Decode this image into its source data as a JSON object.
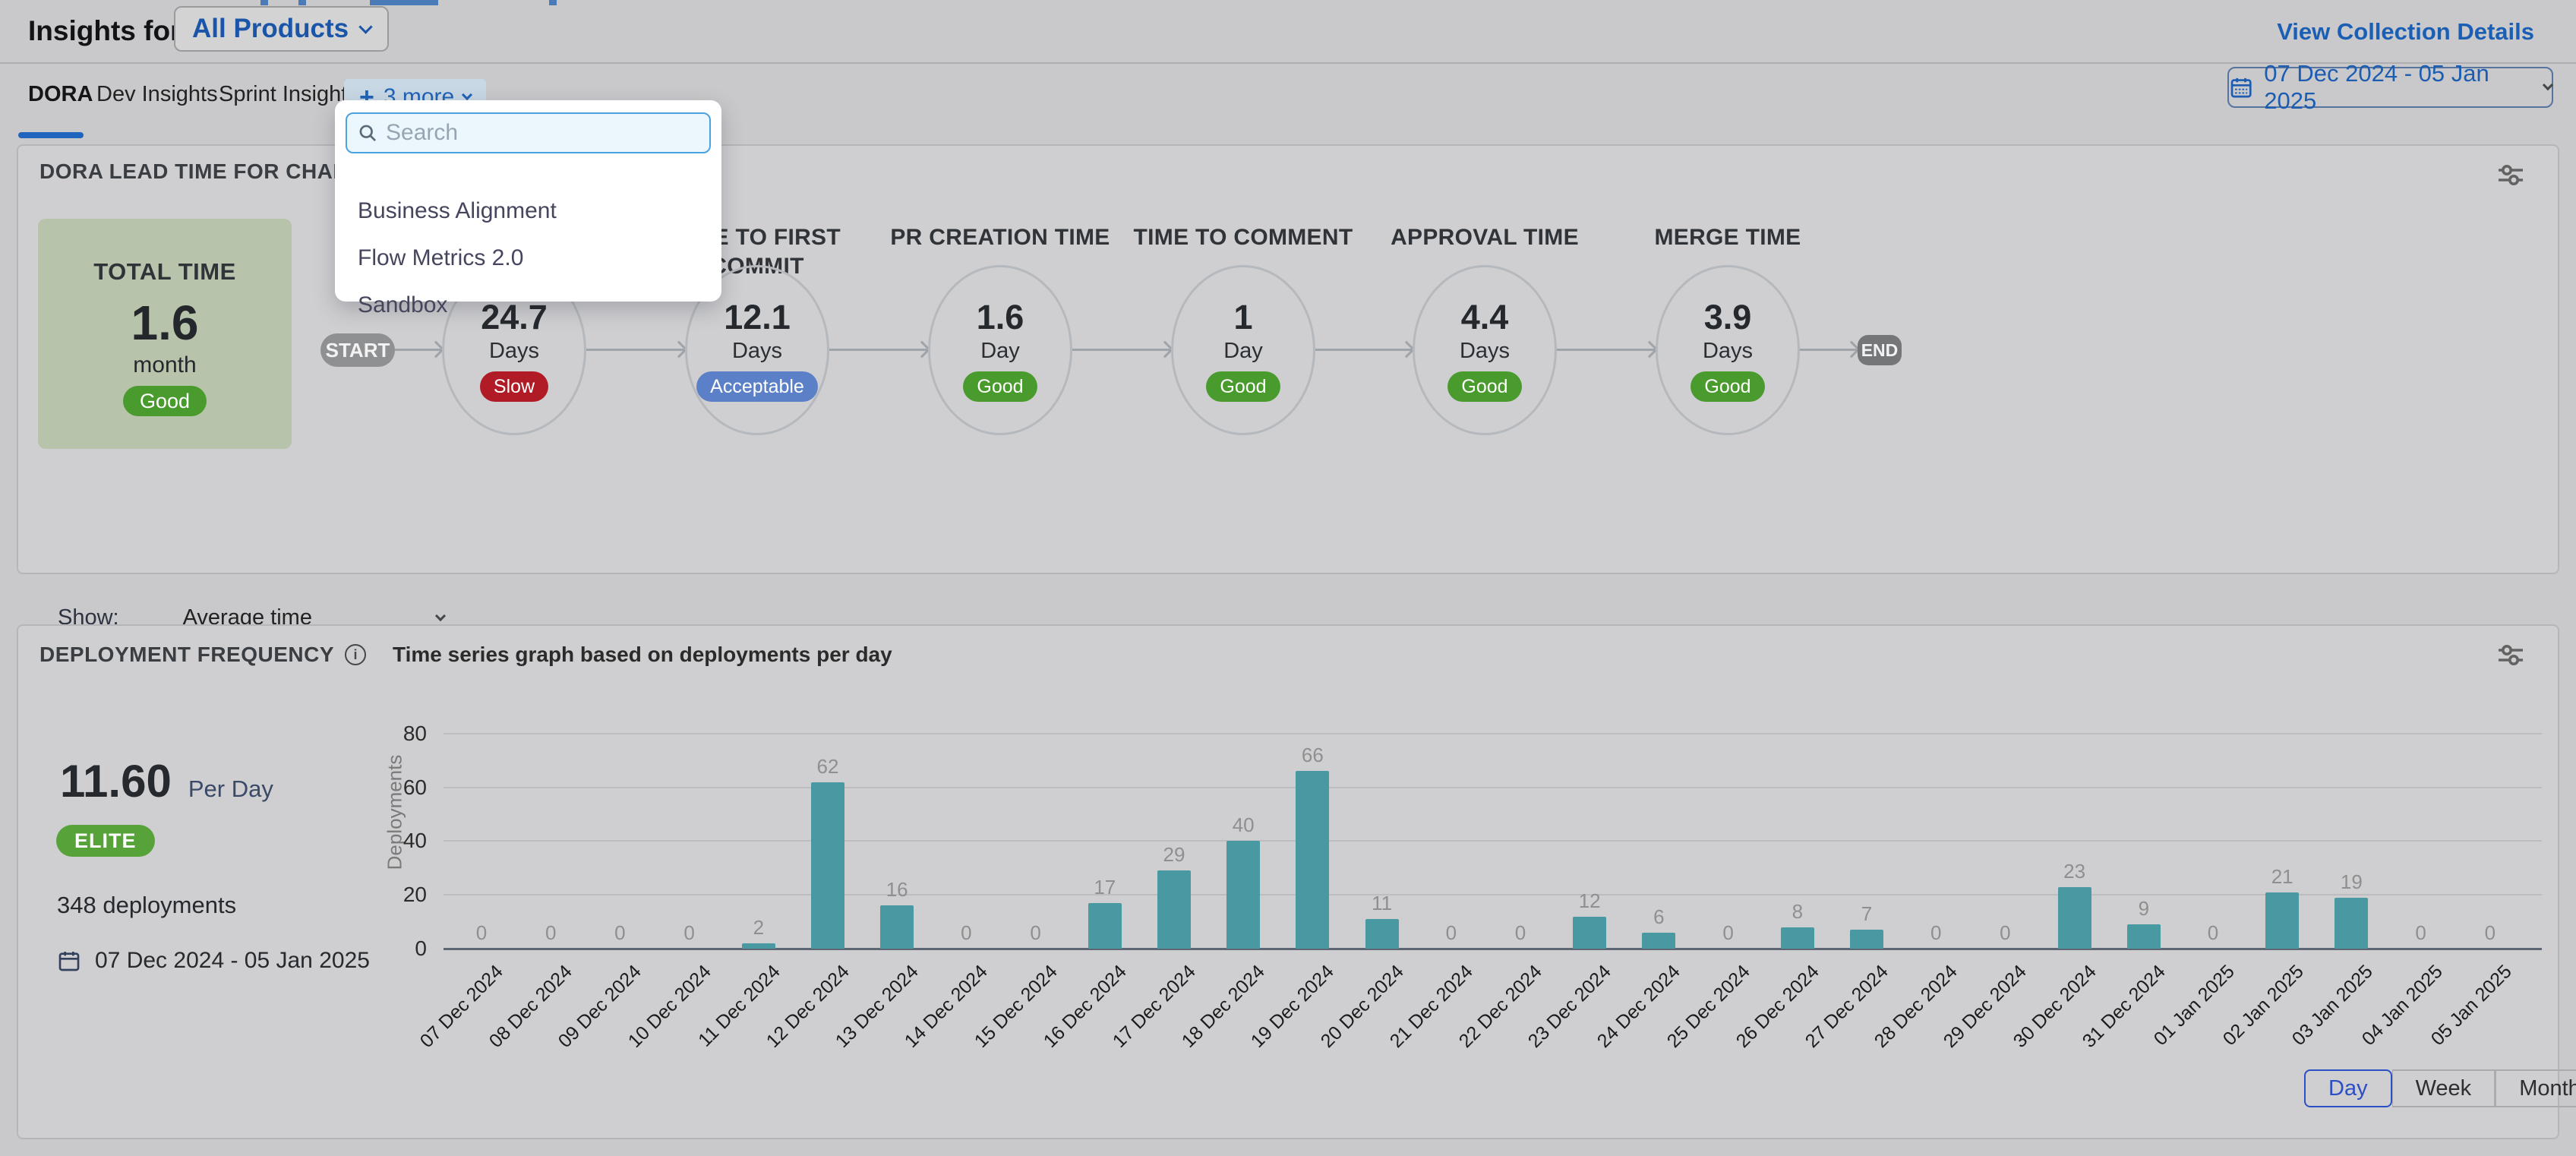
{
  "header": {
    "title_prefix": "Insights for",
    "collection_button": "All Products",
    "view_details": "View Collection Details"
  },
  "tabs": [
    {
      "label": "DORA",
      "active": true
    },
    {
      "label": "Dev Insights",
      "active": false
    },
    {
      "label": "Sprint Insights",
      "active": false
    }
  ],
  "tabs_more": {
    "label": "3 more",
    "plus": "+"
  },
  "date_button": {
    "label": "07 Dec 2024 - 05 Jan 2025"
  },
  "dropdown": {
    "search_placeholder": "Search",
    "items": [
      "Business Alignment",
      "Flow Metrics 2.0",
      "Sandbox"
    ]
  },
  "lead": {
    "title": "DORA LEAD TIME FOR CHANGES REPORT",
    "total": {
      "label": "TOTAL TIME",
      "value": "1.6",
      "unit": "month",
      "status": "Good"
    },
    "show_label": "Show:",
    "show_value": "Average time",
    "legend": [
      {
        "label": "Good",
        "color": "#4a9b2e"
      },
      {
        "label": "Acceptable",
        "color": "#5b80c8"
      },
      {
        "label": "Slow",
        "color": "#b01b25"
      }
    ],
    "status_colors": {
      "Good": "#4a9b2e",
      "Acceptable": "#5b80c8",
      "Slow": "#b01b25"
    },
    "flow": {
      "start_label": "START",
      "end_label": "END",
      "stages": [
        {
          "label": "",
          "value": "24.7",
          "unit": "Days",
          "status": "Slow"
        },
        {
          "label": "TIME TO FIRST COMMIT",
          "value": "12.1",
          "unit": "Days",
          "status": "Acceptable"
        },
        {
          "label": "PR CREATION TIME",
          "value": "1.6",
          "unit": "Day",
          "status": "Good"
        },
        {
          "label": "TIME TO COMMENT",
          "value": "1",
          "unit": "Day",
          "status": "Good"
        },
        {
          "label": "APPROVAL TIME",
          "value": "4.4",
          "unit": "Days",
          "status": "Good"
        },
        {
          "label": "MERGE TIME",
          "value": "3.9",
          "unit": "Days",
          "status": "Good"
        }
      ]
    }
  },
  "dep": {
    "title": "DEPLOYMENT FREQUENCY",
    "subtitle": "Time series graph based on deployments per day",
    "rate_value": "11.60",
    "rate_unit": "Per Day",
    "badge": "ELITE",
    "badge_color": "#57a33a",
    "total_label": "348 deployments",
    "date_range": "07 Dec 2024 - 05 Jan 2025",
    "granularity": [
      "Day",
      "Week",
      "Month"
    ],
    "granularity_selected": "Day"
  },
  "chart_data": {
    "type": "bar",
    "title": "Time series graph based on deployments per day",
    "xlabel": "",
    "ylabel": "Deployments",
    "categories": [
      "07 Dec 2024",
      "08 Dec 2024",
      "09 Dec 2024",
      "10 Dec 2024",
      "11 Dec 2024",
      "12 Dec 2024",
      "13 Dec 2024",
      "14 Dec 2024",
      "15 Dec 2024",
      "16 Dec 2024",
      "17 Dec 2024",
      "18 Dec 2024",
      "19 Dec 2024",
      "20 Dec 2024",
      "21 Dec 2024",
      "22 Dec 2024",
      "23 Dec 2024",
      "24 Dec 2024",
      "25 Dec 2024",
      "26 Dec 2024",
      "27 Dec 2024",
      "28 Dec 2024",
      "29 Dec 2024",
      "30 Dec 2024",
      "31 Dec 2024",
      "01 Jan 2025",
      "02 Jan 2025",
      "03 Jan 2025",
      "04 Jan 2025",
      "05 Jan 2025"
    ],
    "values": [
      0,
      0,
      0,
      0,
      2,
      62,
      16,
      0,
      0,
      17,
      29,
      40,
      66,
      11,
      0,
      0,
      12,
      6,
      0,
      8,
      7,
      0,
      0,
      23,
      9,
      0,
      21,
      19,
      0,
      0
    ],
    "ylim": [
      0,
      80
    ],
    "yticks": [
      0,
      20,
      40,
      60,
      80
    ],
    "bar_color": "#4899a2",
    "grid": true,
    "legend_shown": false,
    "value_labels": true
  }
}
